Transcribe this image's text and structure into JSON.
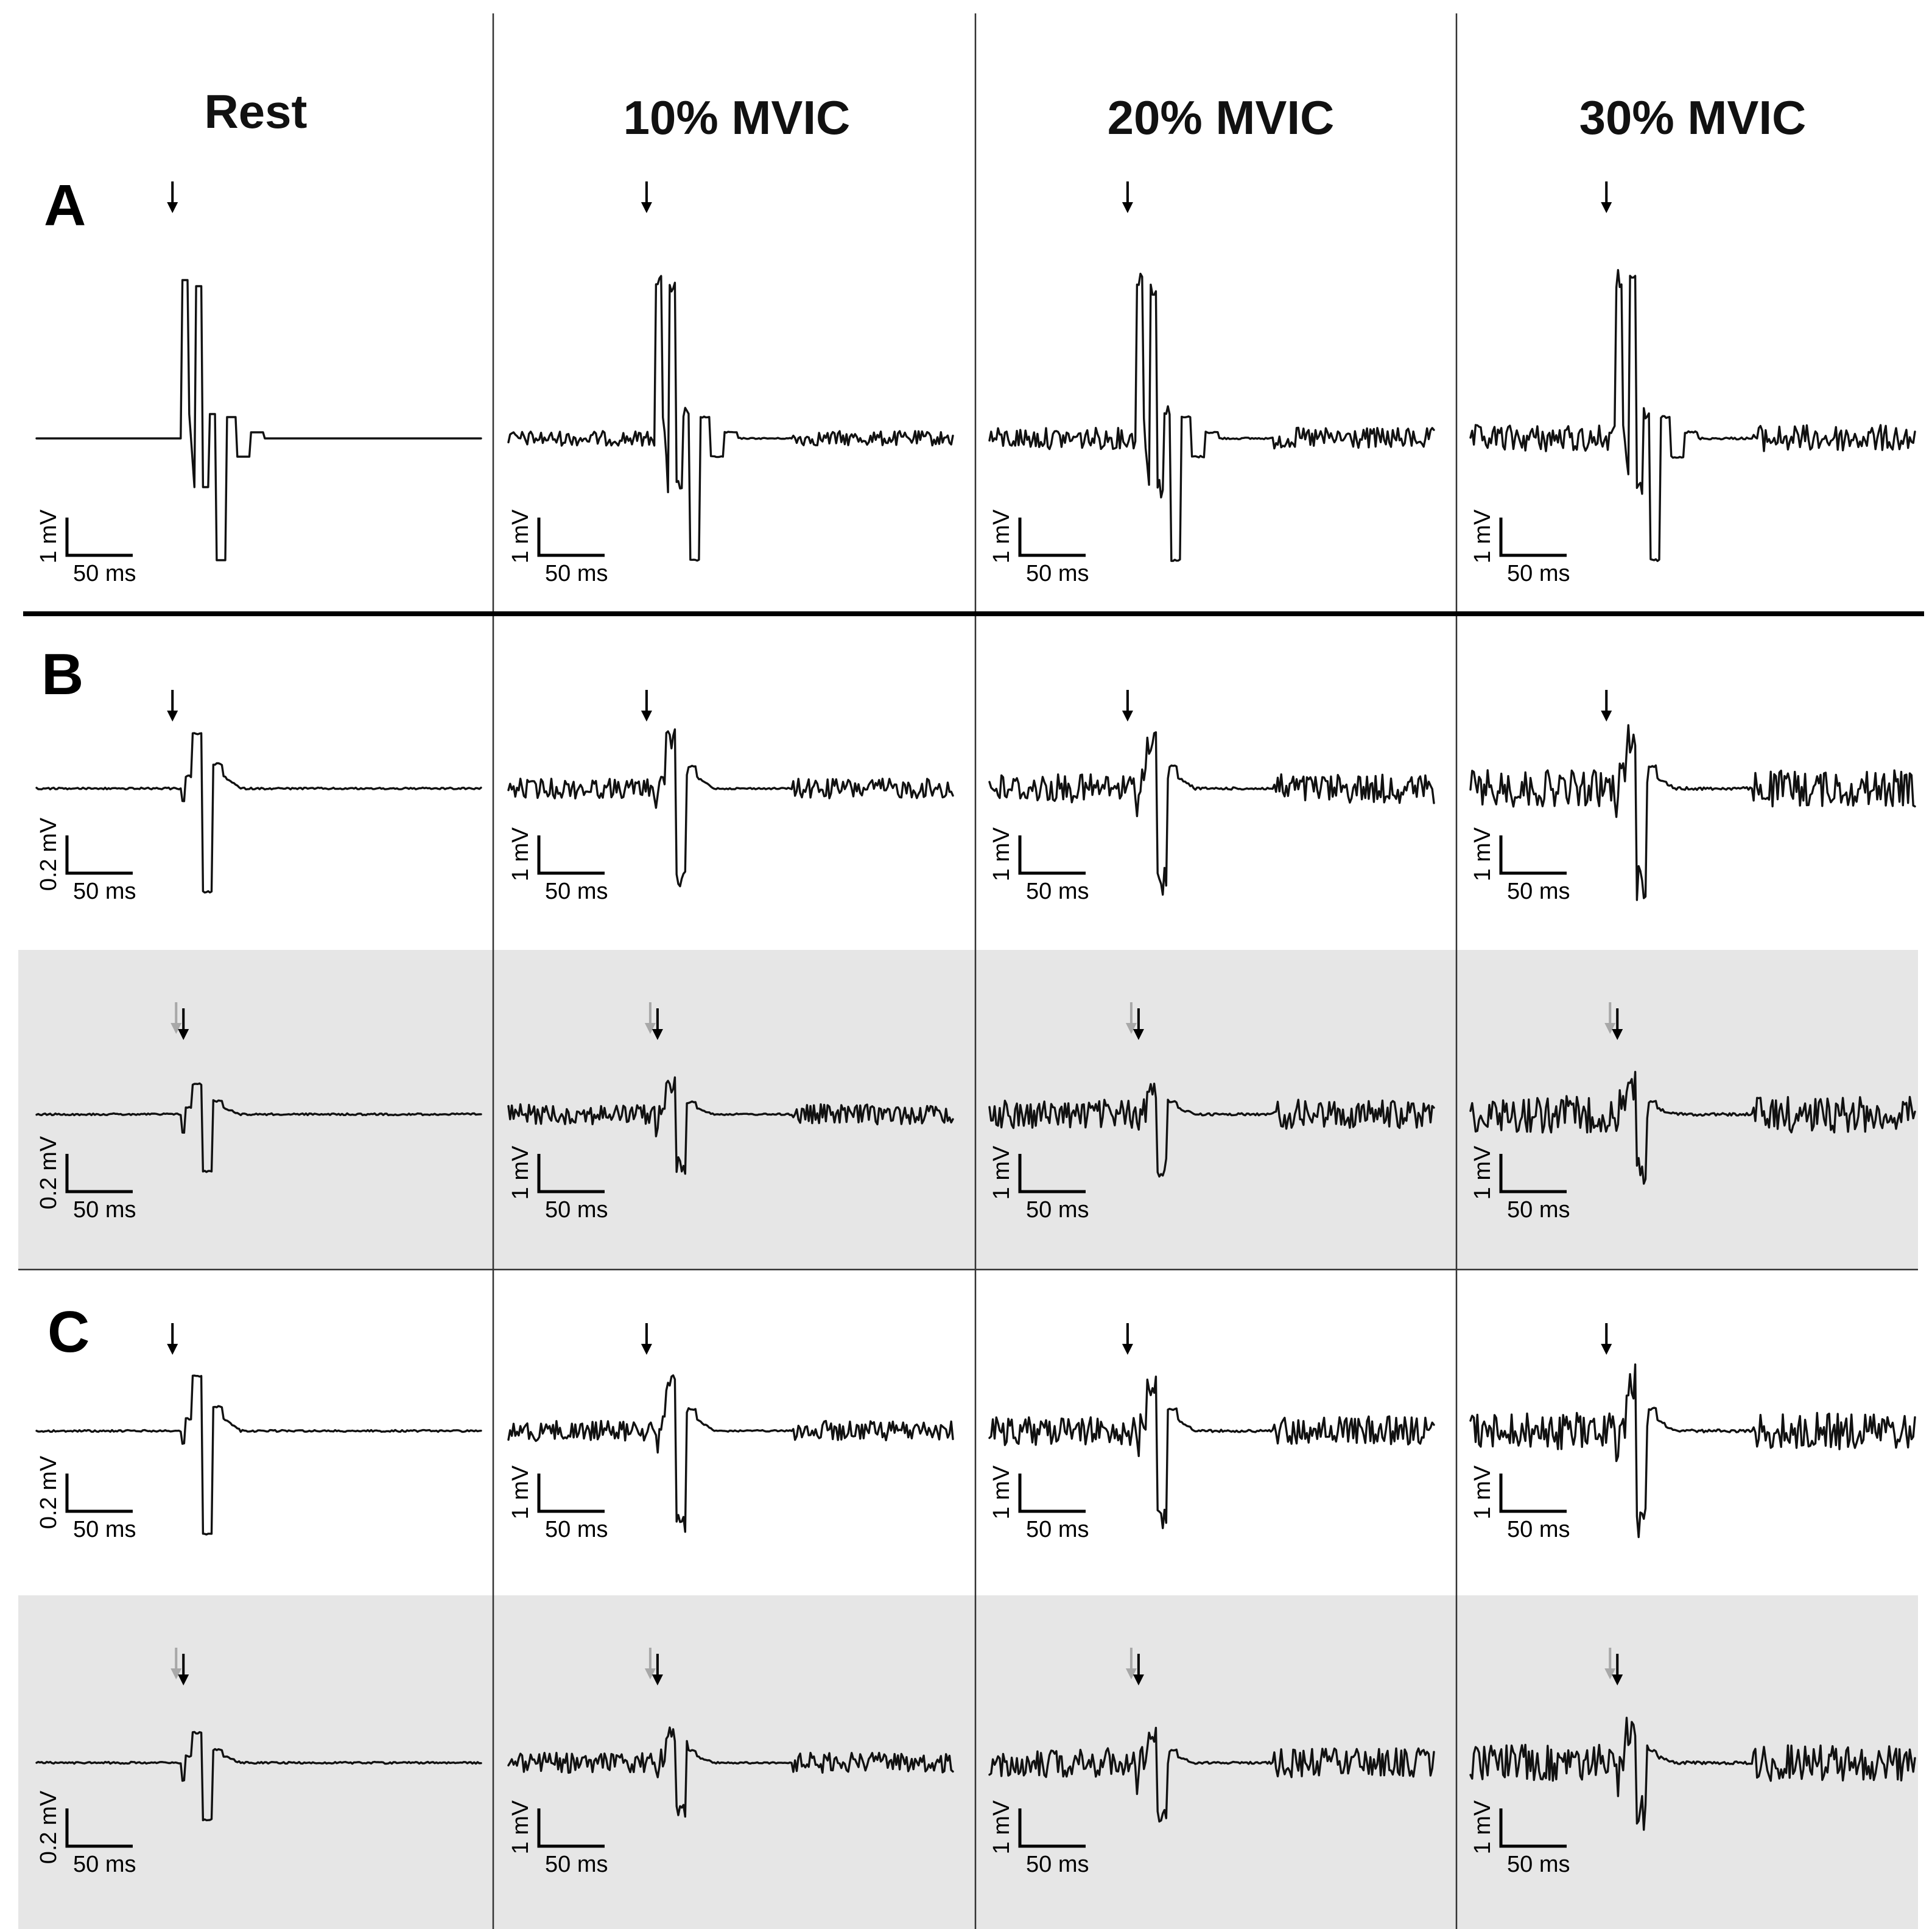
{
  "columns": [
    {
      "id": "rest",
      "label": "Rest"
    },
    {
      "id": "10",
      "label": "10% MVIC"
    },
    {
      "id": "20",
      "label": "20% MVIC"
    },
    {
      "id": "30",
      "label": "30% MVIC"
    }
  ],
  "sections": [
    "A",
    "B",
    "C"
  ],
  "scale_labels": {
    "time": "50 ms",
    "amp_1": "1 mV",
    "amp_02": "0.2 mV"
  },
  "rows": [
    {
      "section": "A",
      "shaded": false,
      "marker": "single",
      "amp": [
        "amp_1",
        "amp_1",
        "amp_1",
        "amp_1"
      ]
    },
    {
      "section": "B",
      "shaded": false,
      "marker": "single",
      "amp": [
        "amp_02",
        "amp_1",
        "amp_1",
        "amp_1"
      ]
    },
    {
      "section": "",
      "shaded": true,
      "marker": "double",
      "amp": [
        "amp_02",
        "amp_1",
        "amp_1",
        "amp_1"
      ]
    },
    {
      "section": "C",
      "shaded": false,
      "marker": "single",
      "amp": [
        "amp_02",
        "amp_1",
        "amp_1",
        "amp_1"
      ]
    },
    {
      "section": "",
      "shaded": true,
      "marker": "double",
      "amp": [
        "amp_02",
        "amp_1",
        "amp_1",
        "amp_1"
      ]
    }
  ],
  "colors": {
    "trace": "#111111",
    "shade": "#e6e6e6",
    "arrow_black": "#000000",
    "arrow_gray": "#a8a8a8"
  },
  "noise_levels_by_column": [
    0,
    0.55,
    0.8,
    1.0
  ]
}
